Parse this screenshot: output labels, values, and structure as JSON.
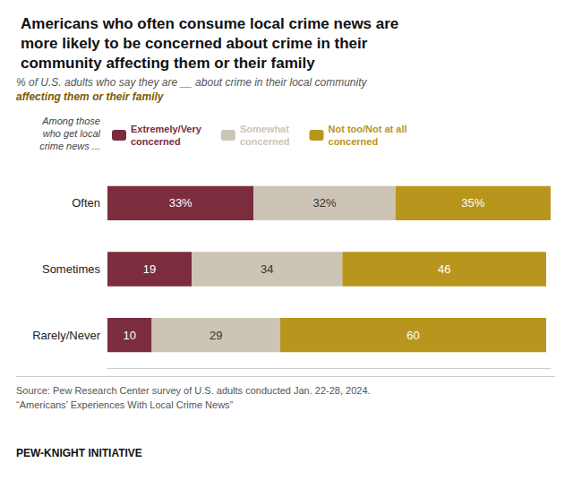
{
  "chart_data": {
    "type": "bar",
    "orientation": "horizontal",
    "stacked": true,
    "title": "Americans who often consume local crime news are\nmore likely to be concerned about crime in their\ncommunity affecting them or their family",
    "subtitle": "% of U.S. adults who say they are __ about crime in their local community\naffecting them or their family",
    "annotations": [
      "Among those\nwho get local\ncrime news ...",
      "Source: Pew Research Center survey of U.S. adults conducted Jan. 22-28, 2024.\n“Americans’ Experiences With Local Crime News”",
      "PEW-KNIGHT INITIATIVE"
    ],
    "categories": [
      "Often",
      "Sometimes",
      "Rarely/Never"
    ],
    "series": [
      {
        "name": "Extremely/Very\nconcerned",
        "color": "#7b2d3e",
        "values": [
          33,
          19,
          10
        ],
        "value_labels": [
          "33%",
          "19",
          "10"
        ]
      },
      {
        "name": "Somewhat\nconcerned",
        "color": "#ccc5b5",
        "values": [
          32,
          34,
          29
        ],
        "value_labels": [
          "32%",
          "34",
          "29"
        ]
      },
      {
        "name": "Not too/Not at all\nconcerned",
        "color": "#b8961e",
        "values": [
          35,
          46,
          60
        ],
        "value_labels": [
          "35%",
          "46",
          "60"
        ]
      }
    ],
    "xlim": [
      0,
      100
    ],
    "data_labels": true,
    "legend": "top",
    "grid": false,
    "tick_labels": "y"
  }
}
